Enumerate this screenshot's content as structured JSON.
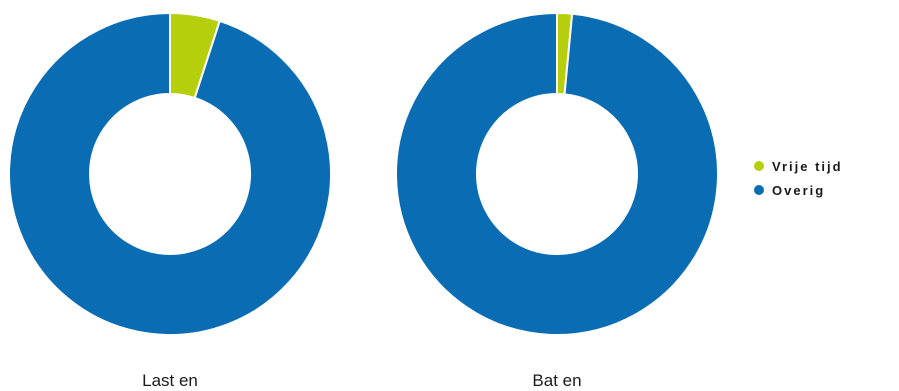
{
  "chart_data": {
    "type": "pie",
    "subtype": "donut",
    "series_names": [
      "Vrije tijd",
      "Overig"
    ],
    "colors": {
      "Vrije tijd": "#b5cf0d",
      "Overig": "#0a6cb3"
    },
    "charts": [
      {
        "title": "Last en",
        "values": {
          "Vrije tijd": 5,
          "Overig": 95
        }
      },
      {
        "title": "Bat en",
        "values": {
          "Vrije tijd": 1.5,
          "Overig": 98.5
        }
      }
    ],
    "legend": {
      "position": "right",
      "items": [
        {
          "label": "Vrije tijd",
          "color": "#b5cf0d"
        },
        {
          "label": "Overig",
          "color": "#0a6cb3"
        }
      ]
    }
  }
}
